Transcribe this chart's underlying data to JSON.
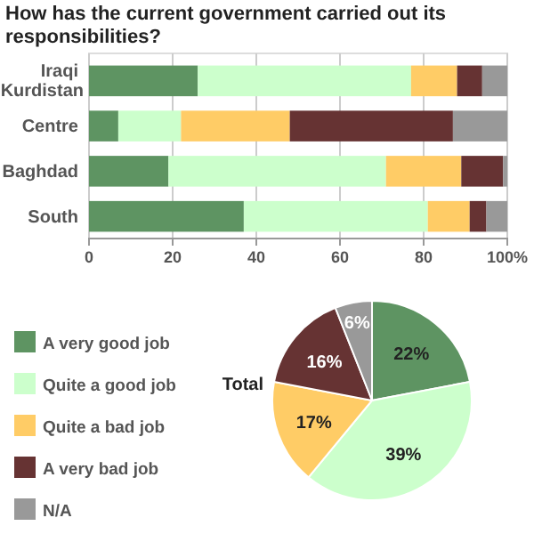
{
  "chart_data": [
    {
      "type": "bar",
      "title": "How has the current government carried out its responsibilities?",
      "orientation": "horizontal",
      "stacked": true,
      "categories": [
        "Iraqi Kurdistan",
        "Centre",
        "Baghdad",
        "South"
      ],
      "series": [
        {
          "name": "A very good job",
          "color": "#5e9462",
          "values": [
            26,
            7,
            19,
            37
          ]
        },
        {
          "name": "Quite a good job",
          "color": "#ccffcc",
          "values": [
            51,
            15,
            52,
            44
          ]
        },
        {
          "name": "Quite a bad job",
          "color": "#ffcc66",
          "values": [
            11,
            26,
            18,
            10
          ]
        },
        {
          "name": "A very bad job",
          "color": "#663333",
          "values": [
            6,
            39,
            10,
            4
          ]
        },
        {
          "name": "N/A",
          "color": "#999999",
          "values": [
            6,
            13,
            1,
            5
          ]
        }
      ],
      "xlim": [
        0,
        100
      ],
      "xticks": [
        0,
        20,
        40,
        60,
        80,
        {
          "value": 100,
          "label": "100%"
        }
      ],
      "grid": "x",
      "legend": "bottom left"
    },
    {
      "type": "pie",
      "title": "Total",
      "categories": [
        null,
        null,
        null,
        null,
        null
      ],
      "values": [
        22,
        39,
        17,
        16,
        6
      ],
      "value_labels": [
        "22%",
        "39%",
        "17%",
        "16%",
        "6%"
      ],
      "colors": [
        "#5e9462",
        "#ccffcc",
        "#ffcc66",
        "#663333",
        "#999999"
      ]
    }
  ]
}
